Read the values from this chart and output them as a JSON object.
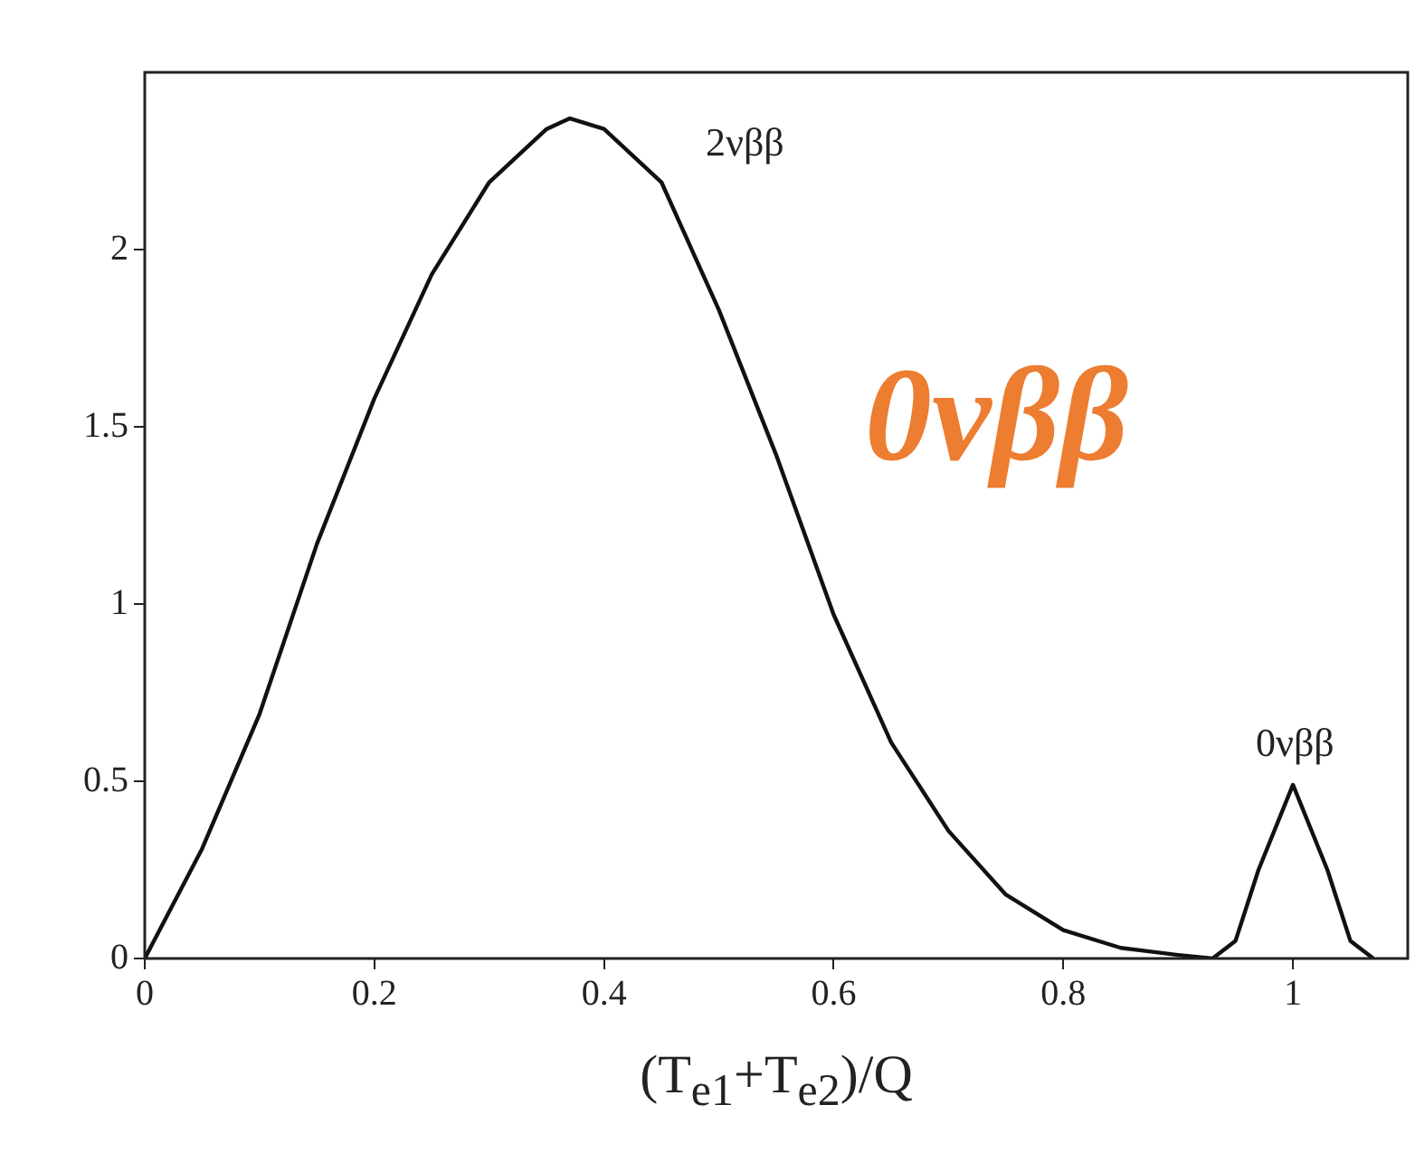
{
  "chart_data": {
    "type": "line",
    "xlabel": "(T$_{e1}$+T$_{e2}$)/Q",
    "x": [
      0,
      0.05,
      0.1,
      0.15,
      0.2,
      0.25,
      0.3,
      0.35,
      0.37,
      0.4,
      0.45,
      0.5,
      0.55,
      0.6,
      0.65,
      0.7,
      0.75,
      0.8,
      0.85,
      0.9,
      0.93,
      0.95,
      0.97,
      1,
      1.03,
      1.05,
      1.07
    ],
    "series": [
      {
        "color": "#111111",
        "values": [
          0,
          0.31,
          0.69,
          1.17,
          1.58,
          1.93,
          2.19,
          2.34,
          2.37,
          2.34,
          2.19,
          1.83,
          1.42,
          0.97,
          0.61,
          0.36,
          0.18,
          0.08,
          0.03,
          0.01,
          0,
          0.05,
          0.25,
          0.49,
          0.25,
          0.05,
          0
        ]
      }
    ],
    "xlim": [
      0,
      1.1
    ],
    "xticks": [
      0,
      0.2,
      0.4,
      0.6,
      0.8,
      1
    ],
    "ylim": [
      0,
      2.5
    ],
    "yticks": [
      0,
      0.5,
      1,
      1.5,
      2
    ],
    "annotations": [
      "2νββ",
      "0νββ",
      "0νββ"
    ],
    "grid": false,
    "legend": false,
    "marker": "none",
    "line_style": "solid"
  }
}
